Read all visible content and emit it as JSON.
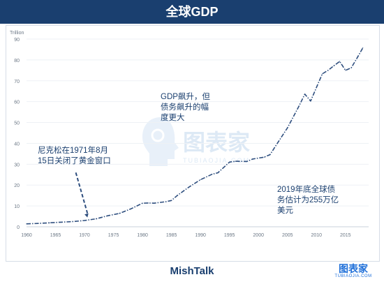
{
  "header": {
    "title": "全球GDP"
  },
  "footer": {
    "source": "MishTalk"
  },
  "logo": {
    "main": "图表家",
    "sub": "TUBIAOJIA.COM"
  },
  "watermark": {
    "main": "图表家",
    "sub": "TUBIAOJIA.COM"
  },
  "annotations": {
    "nixon": [
      "尼克松在1971年8月",
      "15日关闭了黄金窗口"
    ],
    "gdp_note": [
      "GDP飙升，但",
      "债务飙升的幅",
      "度更大"
    ],
    "debt_note": [
      "2019年底全球债",
      "务估计为255万亿",
      "美元"
    ]
  },
  "colors": {
    "title_bar": "#1a3f6f",
    "line": "#2e4e7e",
    "axis_text": "#6b7785",
    "grid": "#eef1f5",
    "arrow": "#2e4e7e",
    "logo": "#1e6fd9"
  },
  "chart_data": {
    "type": "line",
    "title": "全球GDP",
    "ylabel": "Trillion",
    "xlabel": "",
    "xlim": [
      1960,
      2019
    ],
    "ylim": [
      0,
      90
    ],
    "x_ticks": [
      1960,
      1965,
      1970,
      1975,
      1980,
      1985,
      1990,
      1995,
      2000,
      2005,
      2010,
      2015
    ],
    "y_ticks": [
      0,
      10,
      20,
      30,
      40,
      50,
      60,
      70,
      80,
      90
    ],
    "grid": true,
    "line_style": "dash-dot",
    "series": [
      {
        "x": [
          1960,
          1962,
          1964,
          1966,
          1968,
          1970,
          1972,
          1974,
          1976,
          1978,
          1980,
          1981,
          1982,
          1984,
          1985,
          1986,
          1988,
          1990,
          1992,
          1993,
          1995,
          1996,
          1998,
          1999,
          2001,
          2002,
          2003,
          2005,
          2007,
          2008,
          2009,
          2011,
          2012,
          2013,
          2014,
          2015,
          2016,
          2017,
          2018
        ],
        "y": [
          1.4,
          1.6,
          1.9,
          2.2,
          2.5,
          3.0,
          3.8,
          5.3,
          6.4,
          8.6,
          11.3,
          11.4,
          11.3,
          12.0,
          12.6,
          15.0,
          19.0,
          22.6,
          25.2,
          25.9,
          31.0,
          31.4,
          31.3,
          32.5,
          33.4,
          34.6,
          38.9,
          47.4,
          57.9,
          63.6,
          60.3,
          73.3,
          75.0,
          77.2,
          79.3,
          75.0,
          76.2,
          80.9,
          85.8
        ]
      }
    ],
    "arrow_annotation": {
      "from": [
        1968.5,
        26
      ],
      "to": [
        1970.5,
        4.5
      ]
    }
  }
}
